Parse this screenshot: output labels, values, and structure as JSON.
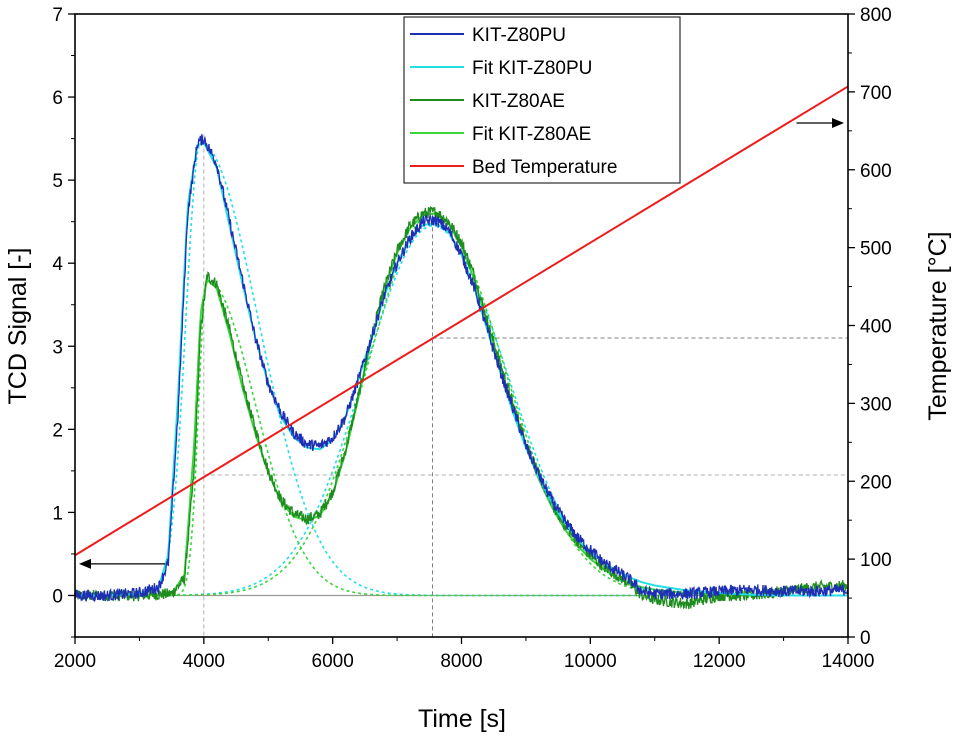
{
  "chart_data": {
    "type": "line",
    "xlabel": "Time [s]",
    "ylabel": "TCD Signal [-]",
    "y2label": "Temperature [°C]",
    "xlim": [
      2000,
      14000
    ],
    "ylim": [
      -0.5,
      7
    ],
    "y2lim": [
      0,
      800
    ],
    "xticks": [
      2000,
      4000,
      6000,
      8000,
      10000,
      12000,
      14000
    ],
    "yticks": [
      0,
      1,
      2,
      3,
      4,
      5,
      6,
      7
    ],
    "y2ticks": [
      0,
      100,
      200,
      300,
      400,
      500,
      600,
      700,
      800
    ],
    "legend_position": "top-center",
    "series": [
      {
        "name": "KIT-Z80PU",
        "axis": "left",
        "color": "#1f2fb4",
        "noisy": true,
        "x": [
          2000,
          2500,
          3000,
          3300,
          3450,
          3600,
          3750,
          3900,
          4000,
          4200,
          4400,
          4600,
          4800,
          5000,
          5200,
          5400,
          5600,
          5800,
          6000,
          6200,
          6400,
          6600,
          6800,
          7000,
          7200,
          7400,
          7600,
          7800,
          8000,
          8200,
          8400,
          8600,
          8800,
          9000,
          9200,
          9400,
          9600,
          9800,
          10000,
          10200,
          10400,
          10600,
          10800,
          11000,
          11500,
          12000,
          12500,
          13000,
          13500,
          14000
        ],
        "y": [
          0.0,
          0.0,
          0.03,
          0.1,
          0.4,
          2.2,
          4.6,
          5.45,
          5.5,
          5.2,
          4.5,
          3.8,
          3.1,
          2.55,
          2.2,
          1.95,
          1.82,
          1.8,
          1.9,
          2.15,
          2.6,
          3.1,
          3.6,
          4.0,
          4.3,
          4.5,
          4.52,
          4.4,
          4.1,
          3.7,
          3.2,
          2.7,
          2.25,
          1.8,
          1.45,
          1.15,
          0.9,
          0.7,
          0.55,
          0.4,
          0.3,
          0.2,
          0.05,
          0.02,
          0.02,
          0.05,
          0.07,
          0.05,
          0.05,
          0.07
        ]
      },
      {
        "name": "Fit KIT-Z80PU",
        "axis": "left",
        "color": "#22e0e6",
        "noisy": false,
        "x": [
          2000,
          2500,
          3000,
          3300,
          3450,
          3600,
          3750,
          3900,
          4000,
          4200,
          4400,
          4600,
          4800,
          5000,
          5200,
          5400,
          5600,
          5800,
          6000,
          6200,
          6400,
          6600,
          6800,
          7000,
          7200,
          7400,
          7600,
          7800,
          8000,
          8200,
          8400,
          8600,
          8800,
          9000,
          9200,
          9400,
          9600,
          9800,
          10000,
          10200,
          10400,
          10600,
          10800,
          11000,
          11500,
          12000,
          12500,
          13000,
          13500,
          14000
        ],
        "y": [
          0.0,
          0.0,
          0.02,
          0.1,
          0.5,
          2.4,
          4.7,
          5.42,
          5.45,
          5.15,
          4.45,
          3.75,
          3.1,
          2.55,
          2.15,
          1.9,
          1.78,
          1.76,
          1.87,
          2.15,
          2.6,
          3.1,
          3.6,
          4.0,
          4.3,
          4.46,
          4.48,
          4.38,
          4.1,
          3.7,
          3.2,
          2.7,
          2.2,
          1.78,
          1.42,
          1.12,
          0.88,
          0.68,
          0.52,
          0.4,
          0.3,
          0.22,
          0.16,
          0.12,
          0.06,
          0.03,
          0.01,
          0.0,
          0.0,
          0.0
        ]
      },
      {
        "name": "KIT-Z80AE",
        "axis": "left",
        "color": "#1e8c1e",
        "noisy": true,
        "x": [
          2000,
          2500,
          3000,
          3500,
          3700,
          3850,
          3950,
          4050,
          4200,
          4400,
          4600,
          4800,
          5000,
          5200,
          5400,
          5600,
          5800,
          6000,
          6200,
          6400,
          6600,
          6800,
          7000,
          7200,
          7400,
          7600,
          7800,
          8000,
          8200,
          8400,
          8600,
          8800,
          9000,
          9200,
          9400,
          9600,
          9800,
          10000,
          10200,
          10400,
          10600,
          10800,
          11000,
          11500,
          12000,
          12500,
          13000,
          13500,
          14000
        ],
        "y": [
          0.0,
          0.0,
          0.0,
          0.02,
          0.2,
          1.5,
          3.2,
          3.85,
          3.75,
          3.2,
          2.55,
          2.0,
          1.5,
          1.15,
          0.98,
          0.92,
          0.98,
          1.25,
          1.75,
          2.4,
          3.1,
          3.7,
          4.15,
          4.45,
          4.6,
          4.62,
          4.5,
          4.25,
          3.85,
          3.3,
          2.8,
          2.3,
          1.85,
          1.45,
          1.1,
          0.85,
          0.65,
          0.48,
          0.35,
          0.25,
          0.15,
          0.0,
          -0.05,
          -0.1,
          0.0,
          0.0,
          0.05,
          0.1,
          0.12
        ]
      },
      {
        "name": "Fit KIT-Z80AE",
        "axis": "left",
        "color": "#3cd43c",
        "noisy": false,
        "x": [
          2000,
          2500,
          3000,
          3500,
          3700,
          3850,
          3950,
          4050,
          4200,
          4400,
          4600,
          4800,
          5000,
          5200,
          5400,
          5600,
          5800,
          6000,
          6200,
          6400,
          6600,
          6800,
          7000,
          7200,
          7400,
          7600,
          7800,
          8000,
          8200,
          8400,
          8600,
          8800,
          9000,
          9200,
          9400,
          9600,
          9800,
          10000,
          10200,
          10400,
          10600,
          10800,
          11000,
          11500,
          12000,
          12500,
          13000,
          13500,
          14000
        ],
        "y": [
          0.0,
          0.0,
          0.0,
          0.02,
          0.25,
          1.8,
          3.4,
          3.8,
          3.7,
          3.15,
          2.5,
          1.95,
          1.48,
          1.12,
          0.95,
          0.9,
          0.96,
          1.22,
          1.72,
          2.38,
          3.08,
          3.68,
          4.12,
          4.42,
          4.58,
          4.6,
          4.48,
          4.2,
          3.8,
          3.28,
          2.75,
          2.25,
          1.8,
          1.4,
          1.07,
          0.8,
          0.6,
          0.44,
          0.32,
          0.22,
          0.15,
          0.1,
          0.07,
          0.03,
          0.01,
          0.0,
          0.0,
          0.0,
          0.0
        ]
      },
      {
        "name": "Bed Temperature",
        "axis": "right",
        "color": "#ee1c1c",
        "noisy": false,
        "x": [
          2000,
          14000
        ],
        "y": [
          105,
          707
        ]
      }
    ],
    "component_curves": [
      {
        "color": "#22e0e6",
        "center": 3950,
        "amp": 5.45,
        "rise": 230,
        "decay": 900
      },
      {
        "color": "#22e0e6",
        "center": 7550,
        "amp": 4.45,
        "rise": 1050,
        "decay": 1150
      },
      {
        "color": "#3cd43c",
        "center": 4050,
        "amp": 3.8,
        "rise": 130,
        "decay": 750
      },
      {
        "color": "#3cd43c",
        "center": 7550,
        "amp": 4.6,
        "rise": 1000,
        "decay": 1100
      }
    ],
    "annotations": {
      "ref_vlines_x": [
        4000,
        7550
      ],
      "ref_hlines_left_y": [
        3.1,
        1.45
      ],
      "zero_line_y": 0,
      "arrow_to_left_axis": {
        "x_start": 3400,
        "y": 0.38
      },
      "arrow_to_right_axis": {
        "x_start": 13200,
        "y2": 660
      }
    }
  }
}
